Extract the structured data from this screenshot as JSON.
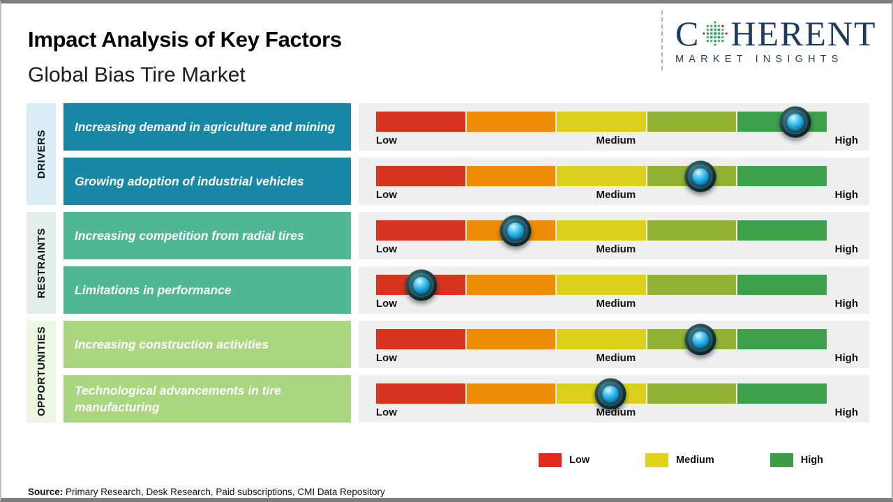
{
  "header": {
    "title": "Impact Analysis of Key Factors",
    "subtitle": "Global Bias Tire Market"
  },
  "logo": {
    "part1": "C",
    "part2": "HERENT",
    "tagline": "MARKET INSIGHTS",
    "brand_color": "#1e3a5f",
    "globe_dot_colors": [
      "#b5176e",
      "#1f9ca6",
      "#6ab04c"
    ]
  },
  "chart_data": {
    "type": "bar",
    "subtype": "impact-slider-matrix",
    "scale_labels": [
      "Low",
      "Medium",
      "High"
    ],
    "segment_colors": [
      "#d73420",
      "#ef8d07",
      "#ddd01d",
      "#93b233",
      "#3da04a"
    ],
    "panel_background": "#efefef",
    "groups": [
      {
        "name": "DRIVERS",
        "box_color": "#1987a6",
        "strip_color": "#d9edf5",
        "factors": [
          {
            "label": "Increasing demand in agriculture and mining",
            "impact_percent": 93,
            "impact_level": "High"
          },
          {
            "label": "Growing adoption of industrial vehicles",
            "impact_percent": 72,
            "impact_level": "Medium-High"
          }
        ]
      },
      {
        "name": "RESTRAINTS",
        "box_color": "#4fb794",
        "strip_color": "#e3ede9",
        "factors": [
          {
            "label": "Increasing competition from radial tires",
            "impact_percent": 31,
            "impact_level": "Low-Medium"
          },
          {
            "label": "Limitations in performance",
            "impact_percent": 10,
            "impact_level": "Low"
          }
        ]
      },
      {
        "name": "OPPORTUNITIES",
        "box_color": "#a9d67f",
        "strip_color": "#ebf6e3",
        "factors": [
          {
            "label": "Increasing construction activities",
            "impact_percent": 72,
            "impact_level": "Medium-High"
          },
          {
            "label": "Technological advancements in tire manufacturing",
            "impact_percent": 52,
            "impact_level": "Medium"
          }
        ]
      }
    ],
    "legend": [
      {
        "label": "Low",
        "color": "#e02b1e"
      },
      {
        "label": "Medium",
        "color": "#e2d01b"
      },
      {
        "label": "High",
        "color": "#3f9e47"
      }
    ],
    "legend_position": "bottom-right"
  },
  "footer": {
    "source_label": "Source:",
    "source_text": "Primary Research, Desk Research, Paid subscriptions, CMI Data Repository"
  }
}
